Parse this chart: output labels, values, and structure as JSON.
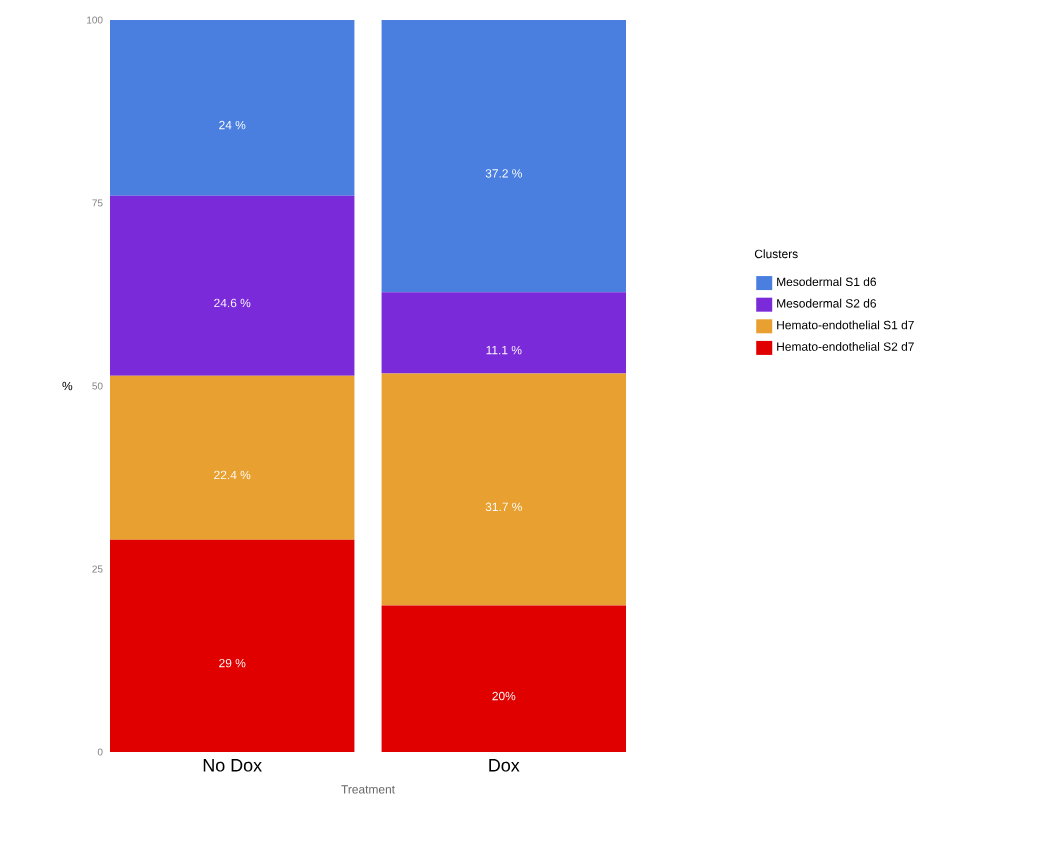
{
  "chart_data": {
    "type": "bar",
    "stacked": true,
    "xlabel": "Treatment",
    "ylabel": "%",
    "legend_title": "Clusters",
    "legend": "right",
    "categories": [
      "No Dox",
      "Dox"
    ],
    "series": [
      {
        "name": "Hemato-endothelial S2 d7",
        "color": "#e00000",
        "values": [
          29,
          20
        ],
        "value_labels": [
          "29 %",
          "20%"
        ]
      },
      {
        "name": "Hemato-endothelial S1 d7",
        "color": "#e8a030",
        "values": [
          22.4,
          31.7
        ],
        "value_labels": [
          "22.4 %",
          "31.7 %"
        ]
      },
      {
        "name": "Mesodermal S2 d6",
        "color": "#7a2ad8",
        "values": [
          24.6,
          11.1
        ],
        "value_labels": [
          "24.6 %",
          "11.1 %"
        ]
      },
      {
        "name": "Mesodermal S1 d6",
        "color": "#4a7fe0",
        "values": [
          24,
          37.2
        ],
        "value_labels": [
          "24 %",
          "37.2 %"
        ]
      }
    ],
    "ylim": [
      0,
      100
    ],
    "yticks": [
      0,
      25,
      50,
      75,
      100
    ],
    "grid": false
  }
}
